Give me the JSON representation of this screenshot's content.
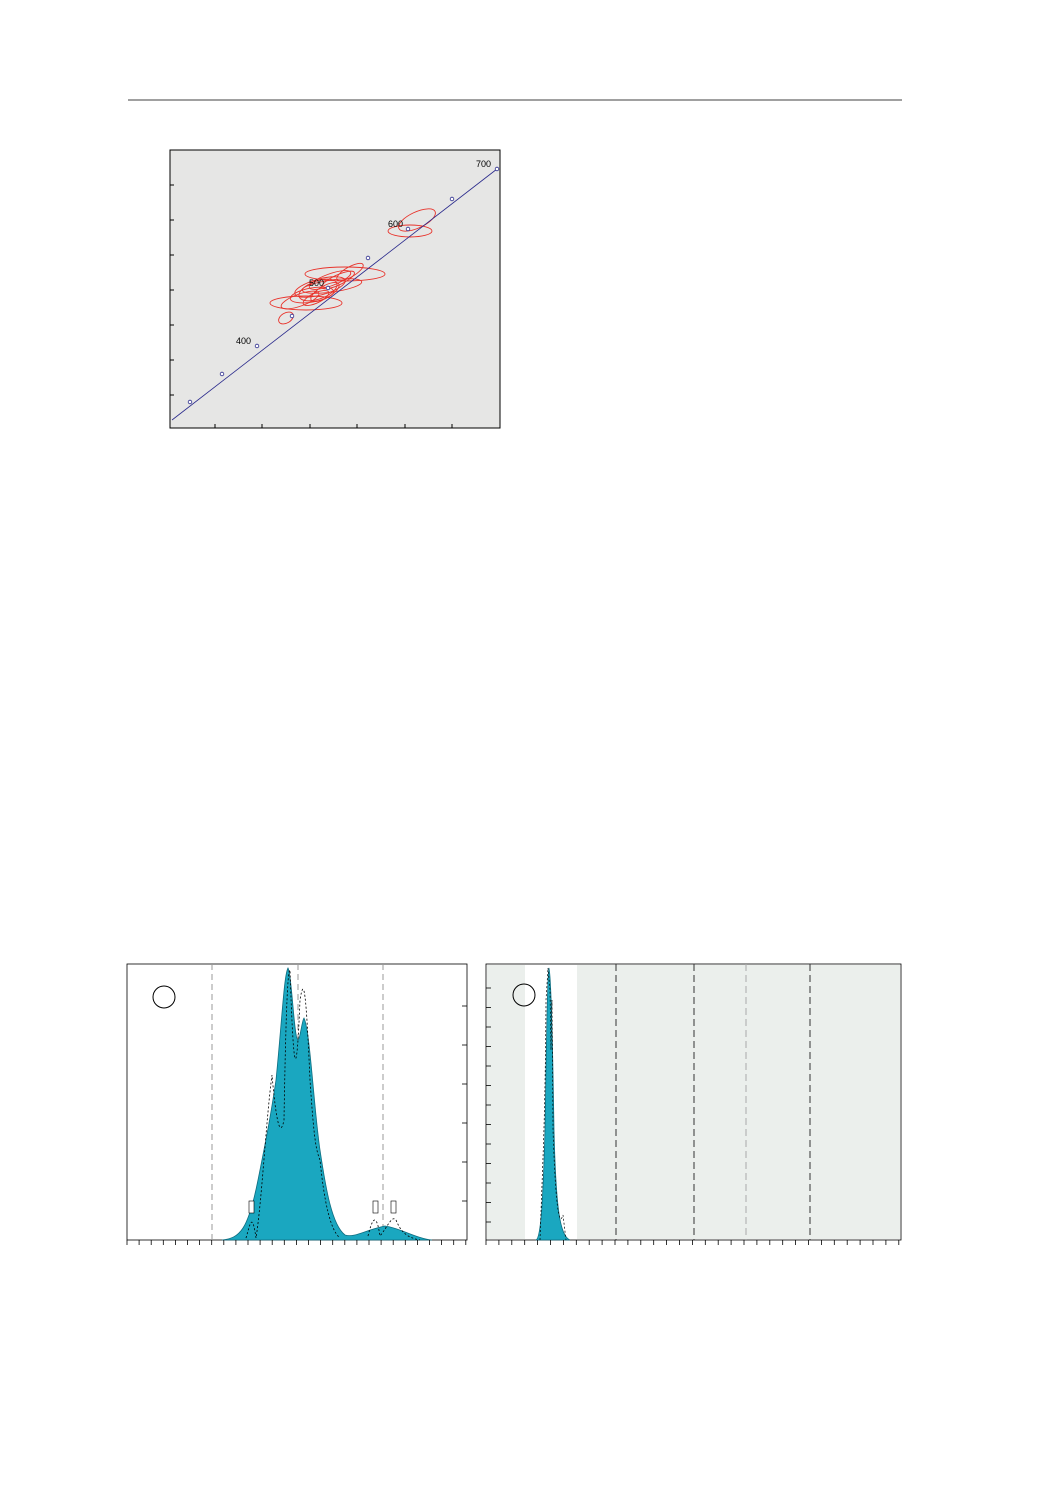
{
  "figure_concordia": {
    "age_labels": [
      400,
      500,
      600,
      700
    ]
  }
}
